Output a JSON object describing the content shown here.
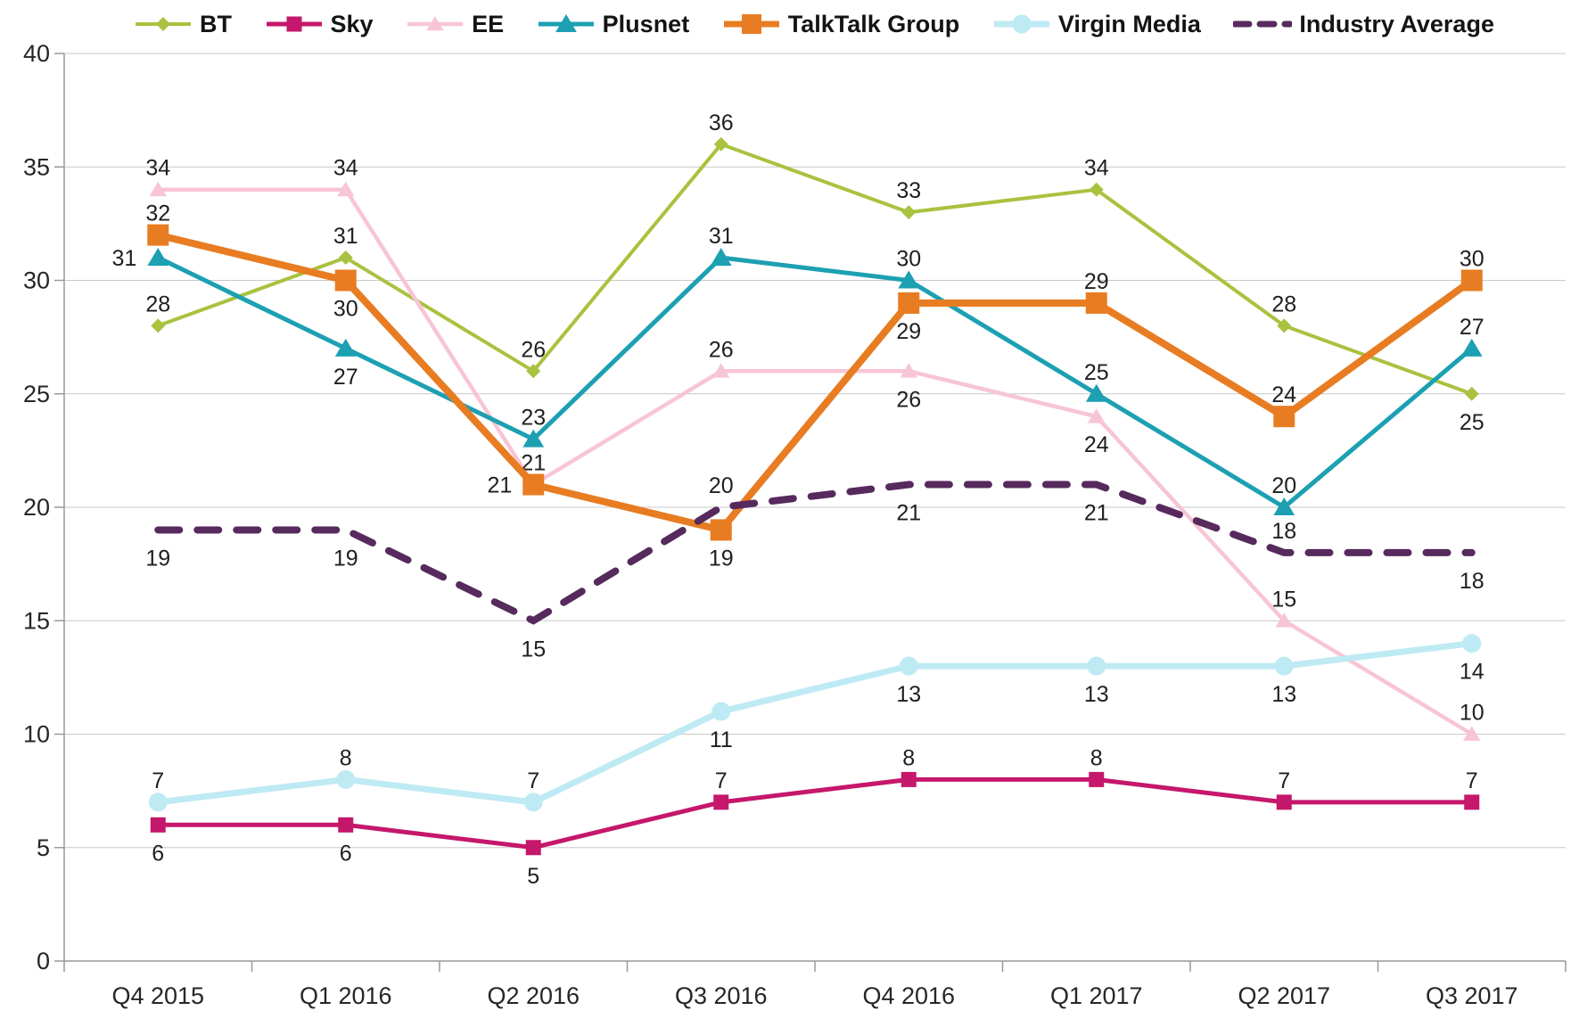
{
  "chart_data": {
    "type": "line",
    "title": "",
    "categories": [
      "Q4 2015",
      "Q1 2016",
      "Q2 2016",
      "Q3 2016",
      "Q4 2016",
      "Q1 2017",
      "Q2 2017",
      "Q3 2017"
    ],
    "y_axis": {
      "min": 0,
      "max": 40,
      "step": 5,
      "tick_labels": [
        "0",
        "5",
        "10",
        "15",
        "20",
        "25",
        "30",
        "35",
        "40"
      ]
    },
    "grid": true,
    "legend_position": "top",
    "axis_color": "#999999",
    "gridline_color": "#c9c9c9",
    "label_color": "#1f1f1f",
    "series": [
      {
        "name": "BT",
        "color": "#A9C23F",
        "marker": "diamond",
        "marker_size": 8,
        "line_width": 4,
        "dashed": false,
        "values": [
          28,
          31,
          26,
          36,
          33,
          34,
          28,
          25
        ],
        "label_positions": [
          "above",
          "above",
          "above",
          "above",
          "above",
          "above",
          "above",
          "below"
        ]
      },
      {
        "name": "Sky",
        "color": "#C5176B",
        "marker": "square",
        "marker_size": 8.5,
        "line_width": 5,
        "dashed": false,
        "values": [
          6,
          6,
          5,
          7,
          8,
          8,
          7,
          7
        ],
        "label_positions": [
          "below",
          "below",
          "below",
          "above",
          "above",
          "above",
          "above",
          "above"
        ]
      },
      {
        "name": "EE",
        "color": "#F8C5D5",
        "marker": "triangle",
        "marker_size": 9,
        "line_width": 4.5,
        "dashed": false,
        "values": [
          34,
          34,
          21,
          26,
          26,
          24,
          15,
          10
        ],
        "label_positions": [
          "above",
          "above",
          "above",
          "above",
          "below",
          "below",
          "above",
          "above"
        ]
      },
      {
        "name": "Plusnet",
        "color": "#1CA0B2",
        "marker": "triangle",
        "marker_size": 11,
        "line_width": 5,
        "dashed": false,
        "values": [
          31,
          27,
          23,
          31,
          30,
          25,
          20,
          27
        ],
        "label_positions": [
          "left",
          "below",
          "above",
          "above",
          "above",
          "above",
          "above",
          "above"
        ]
      },
      {
        "name": "TalkTalk Group",
        "color": "#E87C22",
        "marker": "square",
        "marker_size": 12,
        "line_width": 8,
        "dashed": false,
        "values": [
          32,
          30,
          21,
          19,
          29,
          29,
          24,
          30
        ],
        "label_positions": [
          "above",
          "below",
          "left",
          "below",
          "below",
          "above",
          "above",
          "above"
        ]
      },
      {
        "name": "Virgin Media",
        "color": "#BEEAF4",
        "marker": "circle",
        "marker_size": 10.5,
        "line_width": 7,
        "dashed": false,
        "values": [
          7,
          8,
          7,
          11,
          13,
          13,
          13,
          14
        ],
        "label_positions": [
          "above",
          "above",
          "above",
          "below",
          "below",
          "below",
          "below",
          "below"
        ]
      },
      {
        "name": "Industry Average",
        "color": "#572A5E",
        "marker": "none",
        "marker_size": 0,
        "line_width": 8,
        "dashed": true,
        "values": [
          19,
          19,
          15,
          20,
          21,
          21,
          18,
          18
        ],
        "label_positions": [
          "below",
          "below",
          "below",
          "above",
          "below",
          "below",
          "above",
          "below"
        ]
      }
    ]
  }
}
